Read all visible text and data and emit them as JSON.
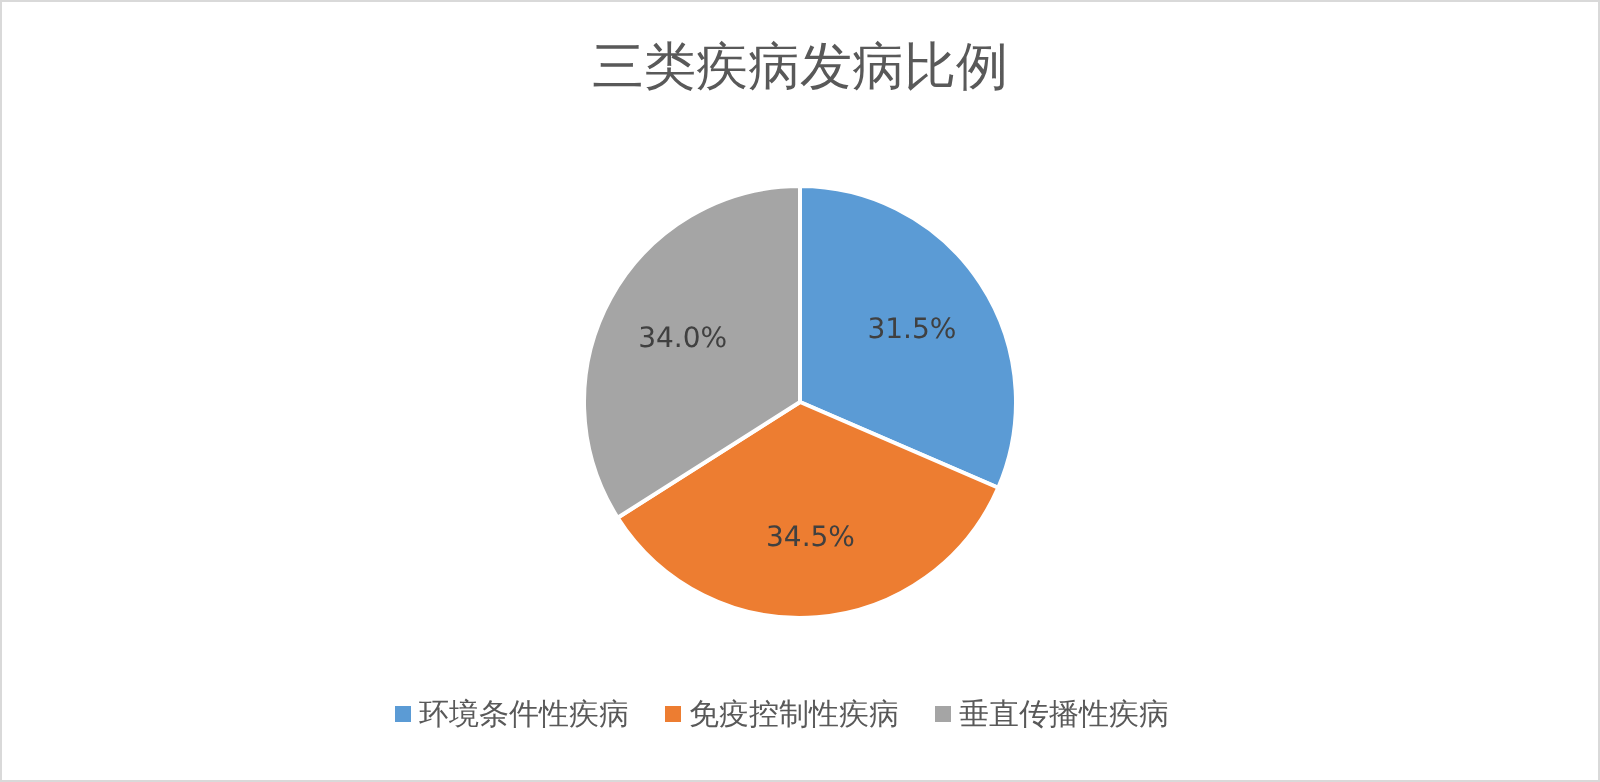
{
  "chart_data": {
    "type": "pie",
    "title": "三类疾病发病比例",
    "categories": [
      "环境条件性疾病",
      "免疫控制性疾病",
      "垂直传播性疾病"
    ],
    "values": [
      31.5,
      34.5,
      34.0
    ],
    "colors": [
      "#5b9bd5",
      "#ed7d31",
      "#a5a5a5"
    ],
    "value_labels": [
      "31.5%",
      "34.5%",
      "34.0%"
    ],
    "legend": "bottom"
  }
}
